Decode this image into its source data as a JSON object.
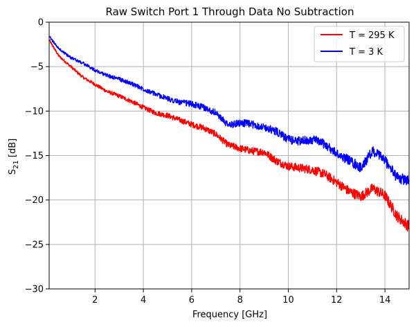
{
  "chart_data": {
    "type": "line",
    "title": "Raw Switch Port 1 Through Data No Subtraction",
    "xlabel": "Frequency [GHz]",
    "ylabel_main": "S",
    "ylabel_sub": "21",
    "ylabel_unit": " [dB]",
    "xlim": [
      0.1,
      15
    ],
    "ylim": [
      -30,
      0
    ],
    "xticks": [
      2,
      4,
      6,
      8,
      10,
      12,
      14
    ],
    "yticks": [
      0,
      -5,
      -10,
      -15,
      -20,
      -25,
      -30
    ],
    "grid": true,
    "legend_position": "top-right",
    "series": [
      {
        "name": "T = 295 K",
        "color": "#ff0000",
        "x": [
          0.1,
          0.5,
          1.0,
          1.5,
          2.0,
          2.5,
          3.0,
          3.5,
          4.0,
          4.5,
          5.0,
          5.5,
          6.0,
          6.5,
          7.0,
          7.5,
          8.0,
          8.5,
          9.0,
          9.5,
          10.0,
          10.5,
          11.0,
          11.5,
          12.0,
          12.5,
          13.0,
          13.5,
          14.0,
          14.5,
          15.0
        ],
        "y": [
          -2.0,
          -3.8,
          -5.0,
          -6.2,
          -7.0,
          -7.8,
          -8.3,
          -8.9,
          -9.6,
          -10.2,
          -10.5,
          -11.0,
          -11.5,
          -11.9,
          -12.6,
          -13.8,
          -14.2,
          -14.5,
          -14.6,
          -15.6,
          -16.2,
          -16.4,
          -16.6,
          -17.1,
          -18.0,
          -19.0,
          -19.6,
          -18.7,
          -19.5,
          -21.8,
          -23.0
        ]
      },
      {
        "name": "T = 3 K",
        "color": "#0000ff",
        "x": [
          0.1,
          0.5,
          1.0,
          1.5,
          2.0,
          2.5,
          3.0,
          3.5,
          4.0,
          4.5,
          5.0,
          5.5,
          6.0,
          6.5,
          7.0,
          7.5,
          8.0,
          8.5,
          9.0,
          9.5,
          10.0,
          10.5,
          11.0,
          11.5,
          12.0,
          12.5,
          13.0,
          13.5,
          14.0,
          14.5,
          15.0
        ],
        "y": [
          -1.6,
          -3.0,
          -4.0,
          -4.6,
          -5.4,
          -6.0,
          -6.4,
          -6.9,
          -7.5,
          -8.1,
          -8.6,
          -9.0,
          -9.2,
          -9.6,
          -10.2,
          -11.6,
          -11.3,
          -11.5,
          -11.8,
          -12.3,
          -13.2,
          -13.4,
          -13.2,
          -13.7,
          -14.8,
          -15.5,
          -16.4,
          -14.5,
          -15.5,
          -17.5,
          -17.8
        ]
      }
    ]
  }
}
